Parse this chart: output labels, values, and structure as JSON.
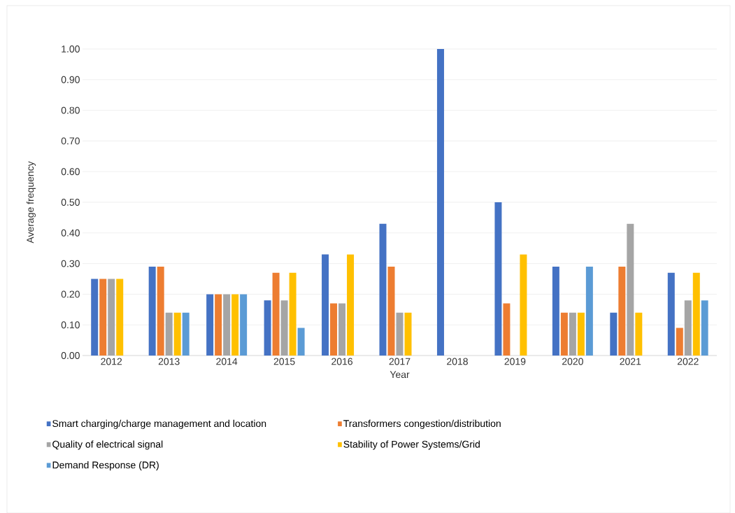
{
  "chart_data": {
    "type": "bar",
    "xlabel": "Year",
    "ylabel": "Average frequency",
    "categories": [
      "2012",
      "2013",
      "2014",
      "2015",
      "2016",
      "2017",
      "2018",
      "2019",
      "2020",
      "2021",
      "2022"
    ],
    "series": [
      {
        "name": "Smart charging/charge management and location",
        "color": "#4472c4",
        "values": [
          0.25,
          0.29,
          0.2,
          0.18,
          0.33,
          0.43,
          1.0,
          0.5,
          0.29,
          0.14,
          0.27
        ]
      },
      {
        "name": "Transformers congestion/distribution",
        "color": "#ed7d31",
        "values": [
          0.25,
          0.29,
          0.2,
          0.27,
          0.17,
          0.29,
          0,
          0.17,
          0.14,
          0.29,
          0.09
        ]
      },
      {
        "name": "Quality of electrical signal",
        "color": "#a5a5a5",
        "values": [
          0.25,
          0.14,
          0.2,
          0.18,
          0.17,
          0.14,
          0,
          0,
          0.14,
          0.43,
          0.18
        ]
      },
      {
        "name": "Stability of Power Systems/Grid",
        "color": "#ffc000",
        "values": [
          0.25,
          0.14,
          0.2,
          0.27,
          0.33,
          0.14,
          0,
          0.33,
          0.14,
          0.14,
          0.27
        ]
      },
      {
        "name": "Demand Response (DR)",
        "color": "#5b9bd5",
        "values": [
          0,
          0.14,
          0.2,
          0.09,
          0,
          0,
          0,
          0,
          0.29,
          0,
          0.18
        ]
      }
    ],
    "ylim": [
      0,
      1
    ],
    "yticks": [
      {
        "value": 0,
        "label": "0.00"
      },
      {
        "value": 0.1,
        "label": "0.10"
      },
      {
        "value": 0.2,
        "label": "0.20"
      },
      {
        "value": 0.3,
        "label": "0.30"
      },
      {
        "value": 0.4,
        "label": "0.40"
      },
      {
        "value": 0.5,
        "label": "0.50"
      },
      {
        "value": 0.6,
        "label": "0.60"
      },
      {
        "value": 0.7,
        "label": "0.70"
      },
      {
        "value": 0.8,
        "label": "0.80"
      },
      {
        "value": 0.9,
        "label": "0.90"
      },
      {
        "value": 1,
        "label": "1.00"
      }
    ],
    "grid": "y",
    "legend": "bottom"
  }
}
